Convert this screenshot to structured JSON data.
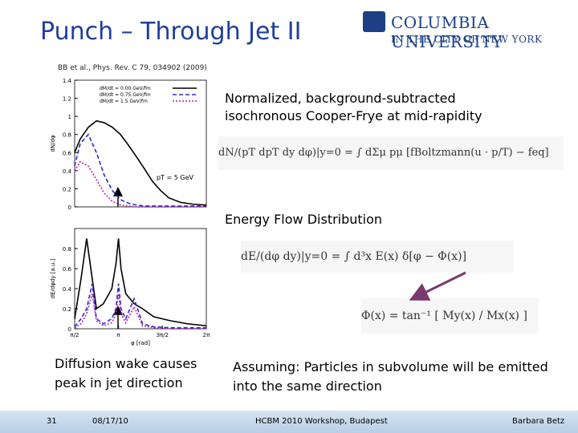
{
  "header": {
    "title": "Punch – Through Jet II",
    "logo_name": "COLUMBIA UNIVERSITY",
    "logo_sub": "IN THE CITY OF NEW YORK"
  },
  "citation": "BB et al., Phys. Rev. C 79, 034902 (2009)",
  "figure": {
    "panels": [
      {
        "y_label": "dN/dφ",
        "ylim": [
          0,
          1.4
        ],
        "yticks": [
          0,
          0.2,
          0.4,
          0.6,
          0.8,
          1,
          1.2,
          1.4
        ],
        "xlim": [
          1.5708,
          6.2832
        ],
        "annotation": "pT = 5 GeV",
        "series": [
          {
            "name": "dM/dt = 0.00 GeV/fm",
            "color": "#000000",
            "dash": "none",
            "x": [
              1.57,
              1.77,
              2.06,
              2.35,
              2.63,
              2.92,
              3.21,
              3.5,
              3.79,
              4.07,
              4.36,
              4.65,
              4.94,
              5.36,
              5.8,
              6.28
            ],
            "values": [
              0.6,
              0.75,
              0.88,
              0.95,
              0.93,
              0.88,
              0.8,
              0.68,
              0.55,
              0.42,
              0.28,
              0.18,
              0.1,
              0.05,
              0.03,
              0.02
            ]
          },
          {
            "name": "dM/dt = 0.75 GeV/fm",
            "color": "#2a2ad0",
            "dash": "5,3",
            "x": [
              1.57,
              1.77,
              2.06,
              2.35,
              2.63,
              2.92,
              3.21,
              3.5,
              3.79,
              4.07,
              4.36,
              4.65,
              4.94,
              5.36,
              5.8,
              6.28
            ],
            "values": [
              0.45,
              0.7,
              0.8,
              0.6,
              0.35,
              0.18,
              0.08,
              0.04,
              0.02,
              0.01,
              0.01,
              0.01,
              0.01,
              0.01,
              0.01,
              0.01
            ]
          },
          {
            "name": "dM/dt = 1.5 GeV/fm",
            "color": "#b020b0",
            "dash": "2,2",
            "x": [
              1.57,
              1.77,
              2.06,
              2.35,
              2.63,
              2.92,
              3.21,
              3.5,
              3.79,
              4.07,
              4.36,
              4.65,
              4.94,
              5.36,
              5.8,
              6.28
            ],
            "values": [
              0.4,
              0.5,
              0.45,
              0.3,
              0.15,
              0.06,
              0.02,
              0.01,
              0,
              0,
              0,
              0,
              0,
              0,
              0,
              0
            ]
          }
        ]
      },
      {
        "y_label": "dE/dφdy [a.u.]",
        "x_label": "φ [rad]",
        "ylim": [
          0,
          1
        ],
        "yticks": [
          0,
          0.2,
          0.4,
          0.6,
          0.8
        ],
        "xlim": [
          1.5708,
          6.2832
        ],
        "xticks": [
          {
            "value": 1.5708,
            "label": "π/2"
          },
          {
            "value": 3.1416,
            "label": "π"
          },
          {
            "value": 4.7124,
            "label": "3π/2"
          },
          {
            "value": 6.2832,
            "label": "2π"
          }
        ],
        "series": [
          {
            "name": "dM/dt = 0.00 GeV/fm",
            "color": "#000000",
            "dash": "none",
            "x": [
              1.57,
              1.8,
              2.0,
              2.2,
              2.35,
              2.6,
              2.9,
              3.05,
              3.14,
              3.23,
              3.4,
              3.7,
              4.0,
              4.4,
              5.0,
              5.6,
              6.28
            ],
            "values": [
              0.1,
              0.5,
              0.9,
              0.5,
              0.2,
              0.25,
              0.4,
              0.65,
              0.9,
              0.6,
              0.35,
              0.25,
              0.2,
              0.12,
              0.08,
              0.05,
              0.03
            ]
          },
          {
            "name": "dM/dt = 0.75 GeV/fm",
            "color": "#2a2ad0",
            "dash": "5,3",
            "x": [
              1.57,
              1.8,
              2.0,
              2.2,
              2.35,
              2.6,
              2.9,
              3.05,
              3.14,
              3.23,
              3.4,
              3.7,
              4.0,
              4.4,
              5.0,
              5.6,
              6.28
            ],
            "values": [
              0.02,
              0.1,
              0.2,
              0.45,
              0.1,
              0.05,
              0.1,
              0.2,
              0.45,
              0.2,
              0.1,
              0.3,
              0.05,
              0.02,
              0.01,
              0.01,
              0.01
            ]
          },
          {
            "name": "dM/dt = 1.5 GeV/fm",
            "color": "#b020b0",
            "dash": "2,2",
            "x": [
              1.57,
              1.8,
              2.0,
              2.2,
              2.35,
              2.6,
              2.9,
              3.05,
              3.14,
              3.23,
              3.4,
              3.7,
              4.0,
              4.4,
              5.0,
              5.6,
              6.28
            ],
            "values": [
              0.01,
              0.05,
              0.15,
              0.35,
              0.08,
              0.03,
              0.06,
              0.15,
              0.35,
              0.15,
              0.06,
              0.22,
              0.03,
              0.01,
              0,
              0,
              0
            ]
          }
        ]
      }
    ]
  },
  "blocks": {
    "cf_heading": "Normalized, background-subtracted isochronous Cooper-Frye at mid-rapidity",
    "cf_eq": "dN/(pT dpT dy dφ)|y=0 = ∫ dΣμ pμ [fBoltzmann(u · p/T) − feq]",
    "ef_heading": "Energy Flow Distribution",
    "ef_eq": "dE/(dφ dy)|y=0 = ∫ d³x E(x) δ[φ − Φ(x)]",
    "phi_eq": "Φ(x) = tan⁻¹ [ My(x) / Mx(x) ]",
    "left_note": "Diffusion wake causes peak in jet direction",
    "right_note": "Assuming: Particles in subvolume will be emitted into the same direction"
  },
  "footer": {
    "page": "31",
    "date": "08/17/10",
    "event": "HCBM 2010 Workshop, Budapest",
    "author": "Barbara Betz"
  }
}
